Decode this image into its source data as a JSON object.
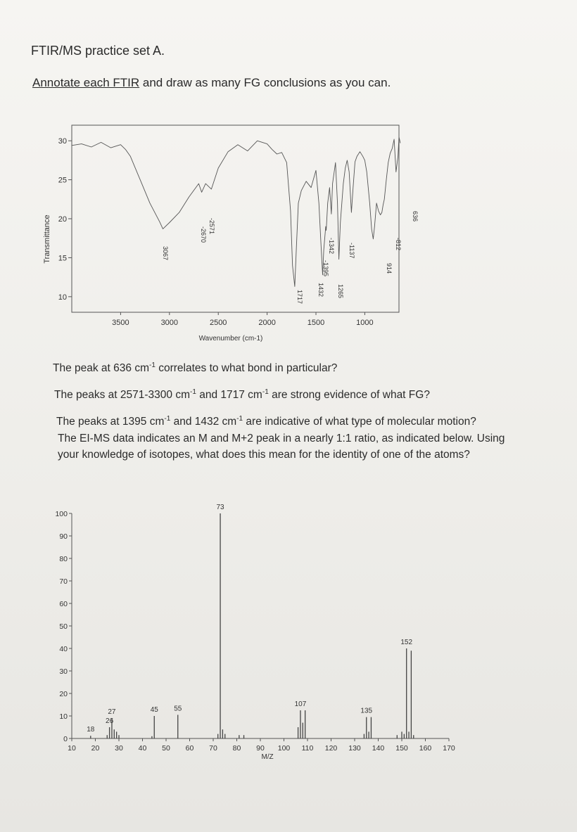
{
  "header": {
    "title": "FTIR/MS practice set A.",
    "instruction_underlined": "Annotate each FTIR",
    "instruction_rest": " and draw as many FG conclusions as you can."
  },
  "questions": [
    {
      "pre": "The peak at 636 cm",
      "sup": "-1",
      "post": " correlates to what bond in particular?"
    },
    {
      "pre": "The peaks at 2571-3300 cm",
      "sup": "-1",
      "mid": " and 1717 cm",
      "sup2": "-1",
      "post": " are strong evidence of what FG?"
    },
    {
      "pre": "The peaks at 1395 cm",
      "sup": "-1",
      "mid": " and 1432 cm",
      "sup2": "-1",
      "post": " are indicative of what type of molecular motion?"
    },
    {
      "line1": "The EI-MS data indicates an M and M+2 peak in a nearly 1:1 ratio, as indicated below. Using",
      "line2": "your knowledge of isotopes, what does this mean for the identity of one of the atoms?"
    }
  ],
  "chart_data": [
    {
      "type": "line",
      "title": "",
      "xlabel": "Wavenumber (cm-1)",
      "ylabel": "Transmittance",
      "xlim": [
        4000,
        650
      ],
      "ylim": [
        8,
        32
      ],
      "x_ticks": [
        3500,
        3000,
        2500,
        2000,
        1500,
        1000
      ],
      "y_ticks": [
        30,
        25,
        20,
        15,
        10
      ],
      "grid": false,
      "series": [
        {
          "x": [
            4000,
            3900,
            3800,
            3700,
            3600,
            3500,
            3450,
            3400,
            3300,
            3200,
            3100,
            3067,
            3000,
            2900,
            2800,
            2700,
            2670,
            2630,
            2571,
            2500,
            2400,
            2300,
            2200,
            2100,
            2000,
            1950,
            1900,
            1850,
            1800,
            1760,
            1740,
            1717,
            1700,
            1680,
            1650,
            1600,
            1550,
            1500,
            1470,
            1450,
            1432,
            1420,
            1400,
            1395,
            1380,
            1360,
            1342,
            1330,
            1300,
            1280,
            1265,
            1250,
            1220,
            1200,
            1180,
            1160,
            1137,
            1120,
            1100,
            1080,
            1050,
            1020,
            1000,
            980,
            950,
            930,
            914,
            900,
            880,
            860,
            840,
            825,
            812,
            800,
            780,
            760,
            740,
            720,
            700,
            680,
            660,
            650,
            636
          ],
          "y": [
            29.4,
            29.6,
            29.2,
            29.8,
            29.1,
            29.5,
            28.9,
            28.0,
            25.0,
            22.0,
            19.6,
            18.7,
            19.5,
            20.8,
            22.8,
            24.5,
            23.4,
            24.5,
            23.8,
            26.5,
            28.6,
            29.5,
            28.7,
            30.0,
            29.6,
            28.9,
            28.3,
            28.5,
            27.2,
            21.0,
            14.0,
            11.3,
            16.5,
            22.0,
            23.6,
            24.8,
            24.0,
            26.2,
            22.0,
            17.0,
            12.8,
            16.0,
            19.0,
            18.5,
            22.0,
            24.0,
            20.6,
            24.5,
            27.2,
            22.0,
            14.8,
            19.5,
            24.5,
            26.5,
            27.5,
            26.0,
            20.8,
            24.0,
            27.3,
            28.0,
            28.6,
            28.0,
            27.5,
            26.0,
            22.0,
            18.7,
            17.4,
            19.0,
            22.0,
            21.0,
            20.5,
            20.8,
            21.8,
            22.5,
            25.0,
            27.2,
            28.4,
            29.0,
            30.2,
            26.0,
            28.0,
            30.5,
            29.7
          ]
        }
      ],
      "annotations": [
        "3067",
        "-2670",
        "-2571",
        "1717",
        "1432",
        "-1395",
        "-1342",
        "1265",
        "-1137",
        "914",
        "-812",
        "636"
      ]
    },
    {
      "type": "bar",
      "title": "",
      "xlabel": "M/Z",
      "ylabel": "",
      "xlim": [
        10,
        170
      ],
      "ylim": [
        0,
        100
      ],
      "x_ticks": [
        10,
        20,
        30,
        40,
        50,
        60,
        70,
        80,
        90,
        100,
        110,
        120,
        130,
        140,
        150,
        160,
        170
      ],
      "y_ticks": [
        0,
        10,
        20,
        30,
        40,
        50,
        60,
        70,
        80,
        90,
        100
      ],
      "grid": false,
      "x": [
        18,
        25,
        26,
        27,
        28,
        29,
        30,
        44,
        45,
        55,
        72,
        73,
        74,
        75,
        81,
        83,
        106,
        107,
        108,
        109,
        134,
        135,
        136,
        137,
        148,
        150,
        151,
        152,
        153,
        154,
        155
      ],
      "values": [
        1.2,
        1.5,
        5,
        9,
        4,
        3,
        1.5,
        1,
        10,
        10.5,
        2,
        100,
        4,
        2,
        1.5,
        1.5,
        5,
        12.5,
        7,
        12.5,
        2,
        9.5,
        3,
        9.5,
        1.5,
        3,
        2,
        40,
        3,
        39,
        1.5
      ],
      "data_labels": [
        {
          "x": 18,
          "text": "18"
        },
        {
          "x": 26,
          "text": "26"
        },
        {
          "x": 27,
          "text": "27"
        },
        {
          "x": 45,
          "text": "45"
        },
        {
          "x": 55,
          "text": "55"
        },
        {
          "x": 73,
          "text": "73"
        },
        {
          "x": 107,
          "text": "107"
        },
        {
          "x": 135,
          "text": "135"
        },
        {
          "x": 152,
          "text": "152"
        }
      ]
    }
  ]
}
